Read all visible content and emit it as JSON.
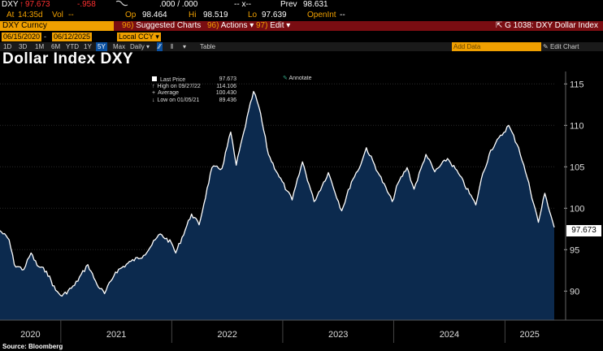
{
  "quote": {
    "ticker": "DXY",
    "arrow": "↑",
    "last": "97.673",
    "change": "-.958",
    "tick_icon": "swoosh-icon",
    "bid_ask": ".000 / .000",
    "dash_x": "--   x--",
    "prev_label": "Prev",
    "prev": "98.631",
    "time_label": "At",
    "time": "14:35d",
    "vol_label": "Vol",
    "vol": "--",
    "open_label": "Op",
    "open": "98.464",
    "high_label": "Hi",
    "high": "98.519",
    "low_label": "Lo",
    "low": "97.639",
    "openint_label": "OpenInt",
    "openint": "--"
  },
  "cmdbar": {
    "security": "DXY Curncy",
    "menu1_num": "96)",
    "menu1": "Suggested Charts",
    "menu2_num": "96)",
    "menu2": "Actions",
    "menu3_num": "97)",
    "menu3": "Edit",
    "graph_desc": "G 1038: DXY Dollar Index"
  },
  "datebar": {
    "start": "06/15/2020",
    "end": "06/12/2025",
    "currency": "Local CCY"
  },
  "rangebar": {
    "ranges": [
      "1D",
      "3D",
      "1M",
      "6M",
      "YTD",
      "1Y",
      "5Y",
      "Max"
    ],
    "selected_index": 6,
    "frequency": "Daily",
    "table": "Table",
    "add_data_placeholder": "Add Data",
    "edit_chart": "Edit Chart"
  },
  "title": "Dollar Index DXY",
  "legend": {
    "last_label": "Last Price",
    "last": "97.673",
    "high_label": "High on 09/27/22",
    "high": "114.106",
    "avg_label": "Average",
    "avg": "100.430",
    "low_label": "Low on 01/05/21",
    "low": "89.436"
  },
  "annotate": "Annotate",
  "price_flag": "97.673",
  "source": "Source: Bloomberg",
  "colors": {
    "accent": "#f0a000",
    "cmdbar": "#7a0d12",
    "fill": "#0c2a4e",
    "line": "#ffffff"
  },
  "chart_data": {
    "type": "area",
    "x_tick_labels": [
      "2020",
      "2021",
      "2022",
      "2023",
      "2024",
      "2025"
    ],
    "y_ticks": [
      90,
      95,
      100,
      105,
      110,
      115
    ],
    "ylim": [
      86.5,
      116.5
    ],
    "xlim": [
      "2020-06-15",
      "2025-06-12"
    ],
    "series": [
      {
        "x": [
          "2020-06-15",
          "2020-07-15",
          "2020-08-01",
          "2020-09-01",
          "2020-09-25",
          "2020-10-15",
          "2020-11-15",
          "2020-12-15",
          "2021-01-05",
          "2021-02-15",
          "2021-03-31",
          "2021-04-30",
          "2021-05-25",
          "2021-06-30",
          "2021-08-20",
          "2021-09-30",
          "2021-11-24",
          "2021-12-31",
          "2022-01-14",
          "2022-03-07",
          "2022-04-01",
          "2022-05-13",
          "2022-06-15",
          "2022-07-14",
          "2022-08-01",
          "2022-08-26",
          "2022-09-27",
          "2022-10-15",
          "2022-11-15",
          "2022-12-15",
          "2023-01-15",
          "2023-02-01",
          "2023-03-07",
          "2023-04-14",
          "2023-05-31",
          "2023-07-14",
          "2023-08-15",
          "2023-09-15",
          "2023-10-03",
          "2023-11-15",
          "2023-12-27",
          "2024-01-15",
          "2024-02-14",
          "2024-03-08",
          "2024-04-16",
          "2024-05-15",
          "2024-06-26",
          "2024-08-01",
          "2024-09-27",
          "2024-10-15",
          "2024-11-15",
          "2025-01-13",
          "2025-02-15",
          "2025-03-15",
          "2025-04-21",
          "2025-05-12",
          "2025-06-12"
        ],
        "values": [
          97.3,
          96.2,
          93.2,
          92.6,
          94.6,
          93.1,
          92.4,
          90.1,
          89.4,
          90.7,
          93.2,
          90.8,
          89.7,
          92.3,
          93.6,
          94.3,
          96.9,
          95.8,
          94.6,
          99.3,
          98.0,
          104.9,
          104.8,
          109.2,
          105.2,
          109.2,
          114.1,
          112.2,
          106.5,
          104.2,
          102.1,
          101.0,
          105.6,
          100.8,
          104.3,
          99.7,
          103.2,
          105.3,
          107.3,
          104.0,
          100.8,
          103.0,
          104.9,
          102.3,
          106.5,
          104.4,
          106.0,
          104.2,
          100.4,
          103.5,
          107.0,
          110.0,
          107.3,
          103.7,
          98.3,
          101.8,
          97.7
        ]
      }
    ]
  }
}
